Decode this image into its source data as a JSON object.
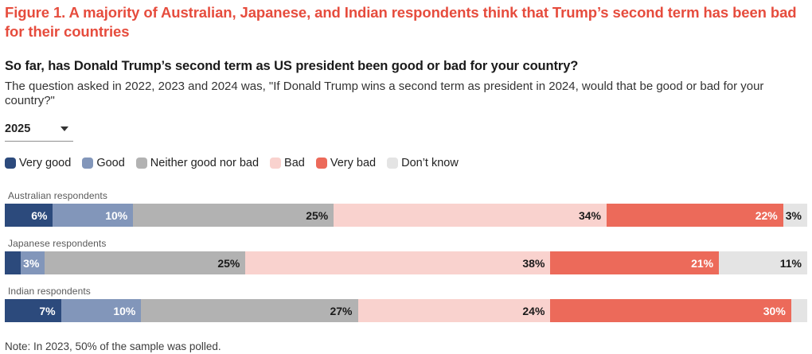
{
  "header": {
    "title": "Figure 1. A majority of Australian, Japanese, and Indian respondents think that Trump’s second term has been bad for their countries",
    "question": "So far, has Donald Trump’s second term as US president been good or bad for your country?",
    "description": "The question asked in 2022, 2023 and 2024 was, \"If Donald Trump wins a second term as president in 2024, would that be good or bad for your country?\""
  },
  "controls": {
    "year_selected": "2025"
  },
  "note": "Note: In 2023, 50% of the sample was polled.",
  "colors": {
    "title_accent": "#e64c3d",
    "very_good": "#2c4a7c",
    "good": "#8296ba",
    "neither": "#b2b2b2",
    "bad": "#f9d2ce",
    "very_bad": "#ec6a5a",
    "dont_know": "#e4e4e4"
  },
  "chart_data": {
    "type": "bar",
    "subtype": "horizontal-stacked-100pct",
    "unit": "%",
    "legend_position": "top",
    "categories": [
      "Australian respondents",
      "Japanese respondents",
      "Indian respondents"
    ],
    "series": [
      {
        "name": "Very good",
        "color": "#2c4a7c",
        "label_color": "#ffffff",
        "values": [
          6,
          2,
          7
        ]
      },
      {
        "name": "Good",
        "color": "#8296ba",
        "label_color": "#ffffff",
        "values": [
          10,
          3,
          10
        ]
      },
      {
        "name": "Neither good nor bad",
        "color": "#b2b2b2",
        "label_color": "#1a1a1a",
        "values": [
          25,
          25,
          27
        ]
      },
      {
        "name": "Bad",
        "color": "#f9d2ce",
        "label_color": "#1a1a1a",
        "values": [
          34,
          38,
          24
        ]
      },
      {
        "name": "Very bad",
        "color": "#ec6a5a",
        "label_color": "#ffffff",
        "values": [
          22,
          21,
          30
        ]
      },
      {
        "name": "Don’t know",
        "color": "#e4e4e4",
        "label_color": "#1a1a1a",
        "values": [
          3,
          11,
          2
        ]
      }
    ],
    "data_labels": [
      [
        "6%",
        "10%",
        "25%",
        "34%",
        "22%",
        "3%"
      ],
      [
        "",
        "3%",
        "25%",
        "38%",
        "21%",
        "11%"
      ],
      [
        "7%",
        "10%",
        "27%",
        "24%",
        "30%",
        ""
      ]
    ]
  }
}
